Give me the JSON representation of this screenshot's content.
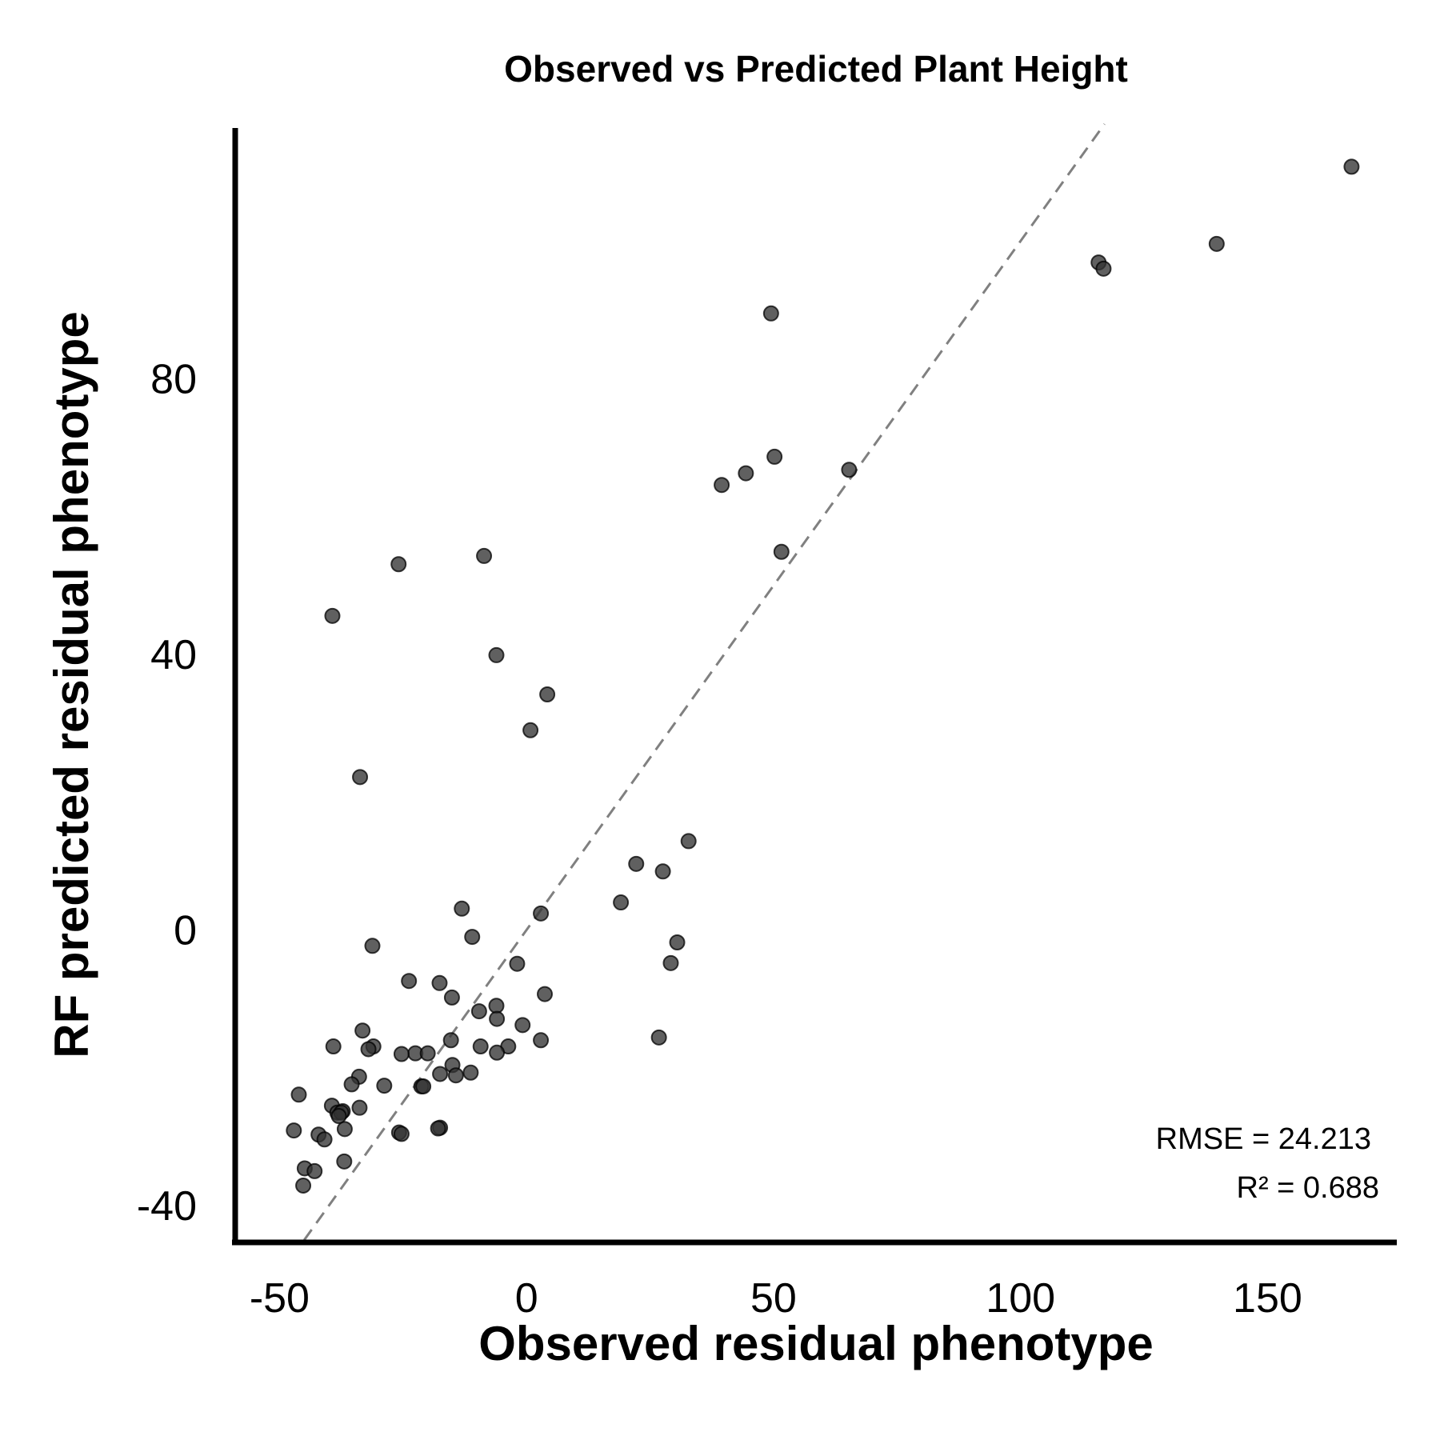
{
  "chart_data": {
    "type": "scatter",
    "title": "Observed vs Predicted Plant Height",
    "xlabel": "Observed residual phenotype",
    "ylabel": "RF predicted residual phenotype",
    "xlim": [
      -58,
      176
    ],
    "ylim": [
      -45,
      117
    ],
    "x_ticks": [
      -50,
      0,
      50,
      100,
      150
    ],
    "y_ticks": [
      -40,
      0,
      40,
      80
    ],
    "x_tick_labels": [
      "-50",
      "0",
      "50",
      "100",
      "150"
    ],
    "y_tick_labels": [
      "-40",
      "0",
      "40",
      "80"
    ],
    "grid": false,
    "point_color": "#333333",
    "reference_line": {
      "style": "dashed",
      "color": "#808080",
      "slope": 1,
      "intercept": 0
    },
    "annotations": {
      "rmse": "RMSE = 24.213",
      "r2": "R² = 0.688"
    },
    "points": [
      [
        167,
        110.8
      ],
      [
        139.7,
        99.6
      ],
      [
        115.8,
        96.9
      ],
      [
        116.8,
        96.0
      ],
      [
        49.5,
        89.5
      ],
      [
        50.2,
        68.7
      ],
      [
        65.3,
        66.8
      ],
      [
        44.4,
        66.3
      ],
      [
        39.5,
        64.6
      ],
      [
        51.6,
        54.9
      ],
      [
        -8.6,
        54.3
      ],
      [
        -25.9,
        53.1
      ],
      [
        -39.3,
        45.6
      ],
      [
        -6.1,
        39.9
      ],
      [
        4.2,
        34.2
      ],
      [
        0.8,
        29.0
      ],
      [
        -33.7,
        22.2
      ],
      [
        32.8,
        12.9
      ],
      [
        22.2,
        9.6
      ],
      [
        27.6,
        8.5
      ],
      [
        19.1,
        4.0
      ],
      [
        -13.1,
        3.1
      ],
      [
        2.9,
        2.4
      ],
      [
        -11.0,
        -1.0
      ],
      [
        -31.2,
        -2.3
      ],
      [
        30.5,
        -1.8
      ],
      [
        29.2,
        -4.8
      ],
      [
        -1.9,
        -4.9
      ],
      [
        -23.8,
        -7.4
      ],
      [
        -17.6,
        -7.7
      ],
      [
        -15.1,
        -9.8
      ],
      [
        3.7,
        -9.3
      ],
      [
        -6.1,
        -11.0
      ],
      [
        -9.6,
        -11.8
      ],
      [
        -6.0,
        -12.9
      ],
      [
        -33.2,
        -14.6
      ],
      [
        -0.8,
        -13.8
      ],
      [
        -15.3,
        -16.0
      ],
      [
        -39.1,
        -16.9
      ],
      [
        2.9,
        -16.0
      ],
      [
        26.8,
        -15.6
      ],
      [
        -31.0,
        -16.9
      ],
      [
        -32.0,
        -17.3
      ],
      [
        -9.3,
        -16.9
      ],
      [
        -3.7,
        -16.9
      ],
      [
        -6.0,
        -17.8
      ],
      [
        -22.5,
        -17.9
      ],
      [
        -20.0,
        -17.9
      ],
      [
        -25.3,
        -18.0
      ],
      [
        -15.0,
        -19.6
      ],
      [
        -17.5,
        -20.9
      ],
      [
        -11.3,
        -20.7
      ],
      [
        -14.3,
        -21.1
      ],
      [
        -33.9,
        -21.3
      ],
      [
        -35.4,
        -22.4
      ],
      [
        -28.8,
        -22.6
      ],
      [
        -21.3,
        -22.7
      ],
      [
        -20.9,
        -22.7
      ],
      [
        -46.1,
        -23.9
      ],
      [
        -39.4,
        -25.5
      ],
      [
        -33.8,
        -25.8
      ],
      [
        -38.3,
        -26.5
      ],
      [
        -37.2,
        -26.3
      ],
      [
        -37.5,
        -26.5
      ],
      [
        -38.0,
        -27.0
      ],
      [
        -36.8,
        -28.9
      ],
      [
        -17.5,
        -28.7
      ],
      [
        -17.9,
        -28.8
      ],
      [
        -47.1,
        -29.1
      ],
      [
        -25.8,
        -29.4
      ],
      [
        -25.3,
        -29.6
      ],
      [
        -42.1,
        -29.7
      ],
      [
        -40.9,
        -30.4
      ],
      [
        -36.9,
        -33.6
      ],
      [
        -44.9,
        -34.6
      ],
      [
        -42.9,
        -35.0
      ],
      [
        -45.2,
        -37.1
      ]
    ]
  }
}
